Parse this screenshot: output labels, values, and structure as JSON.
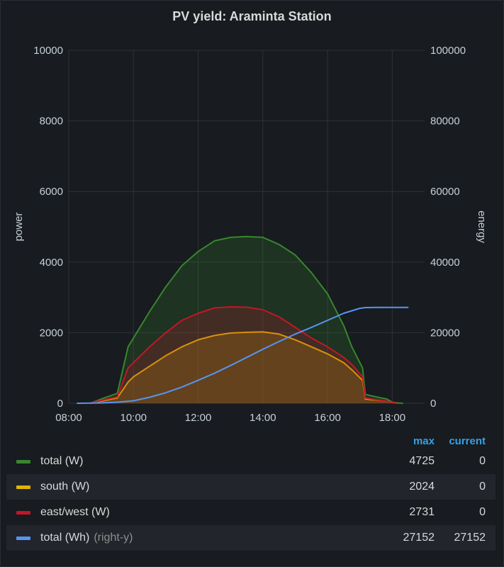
{
  "panel": {
    "title": "PV yield: Araminta Station"
  },
  "chart_data": {
    "type": "area",
    "title": "PV yield: Araminta Station",
    "x_ticks": [
      "08:00",
      "10:00",
      "12:00",
      "14:00",
      "16:00",
      "18:00"
    ],
    "xlim": [
      "08:00",
      "19:00"
    ],
    "y_left": {
      "label": "power",
      "ylim": [
        0,
        10000
      ],
      "ticks": [
        "0",
        "2000",
        "4000",
        "6000",
        "8000",
        "10000"
      ]
    },
    "y_right": {
      "label": "energy",
      "ylim": [
        0,
        100000
      ],
      "ticks": [
        "0",
        "20000",
        "40000",
        "60000",
        "80000",
        "100000"
      ]
    },
    "grid": true,
    "series": [
      {
        "name": "total (W)",
        "color": "#37872d",
        "axis": "left",
        "style": "area",
        "points": [
          [
            "08:40",
            0
          ],
          [
            "09:00",
            120
          ],
          [
            "09:30",
            280
          ],
          [
            "09:50",
            1600
          ],
          [
            "10:00",
            1850
          ],
          [
            "10:30",
            2600
          ],
          [
            "11:00",
            3300
          ],
          [
            "11:30",
            3900
          ],
          [
            "12:00",
            4300
          ],
          [
            "12:30",
            4600
          ],
          [
            "13:00",
            4700
          ],
          [
            "13:30",
            4725
          ],
          [
            "14:00",
            4700
          ],
          [
            "14:30",
            4500
          ],
          [
            "15:00",
            4200
          ],
          [
            "15:30",
            3700
          ],
          [
            "16:00",
            3100
          ],
          [
            "16:30",
            2200
          ],
          [
            "16:45",
            1600
          ],
          [
            "17:05",
            1000
          ],
          [
            "17:10",
            250
          ],
          [
            "17:30",
            180
          ],
          [
            "17:50",
            120
          ],
          [
            "18:00",
            30
          ],
          [
            "18:10",
            10
          ],
          [
            "18:20",
            0
          ]
        ]
      },
      {
        "name": "south (W)",
        "color": "#e0b400",
        "axis": "left",
        "style": "area",
        "points": [
          [
            "08:40",
            0
          ],
          [
            "09:00",
            60
          ],
          [
            "09:30",
            150
          ],
          [
            "09:50",
            600
          ],
          [
            "10:00",
            750
          ],
          [
            "10:30",
            1050
          ],
          [
            "11:00",
            1350
          ],
          [
            "11:30",
            1600
          ],
          [
            "12:00",
            1800
          ],
          [
            "12:30",
            1920
          ],
          [
            "13:00",
            1990
          ],
          [
            "13:30",
            2010
          ],
          [
            "14:00",
            2024
          ],
          [
            "14:30",
            1960
          ],
          [
            "15:00",
            1800
          ],
          [
            "15:30",
            1600
          ],
          [
            "16:00",
            1400
          ],
          [
            "16:30",
            1150
          ],
          [
            "16:45",
            950
          ],
          [
            "17:05",
            650
          ],
          [
            "17:10",
            120
          ],
          [
            "17:30",
            90
          ],
          [
            "17:50",
            60
          ],
          [
            "18:00",
            20
          ],
          [
            "18:10",
            0
          ]
        ]
      },
      {
        "name": "east/west (W)",
        "color": "#c4162a",
        "axis": "left",
        "style": "area",
        "points": [
          [
            "08:40",
            0
          ],
          [
            "09:00",
            80
          ],
          [
            "09:30",
            180
          ],
          [
            "09:50",
            1000
          ],
          [
            "10:00",
            1150
          ],
          [
            "10:30",
            1600
          ],
          [
            "11:00",
            2000
          ],
          [
            "11:30",
            2350
          ],
          [
            "12:00",
            2550
          ],
          [
            "12:30",
            2700
          ],
          [
            "13:00",
            2731
          ],
          [
            "13:30",
            2720
          ],
          [
            "14:00",
            2650
          ],
          [
            "14:30",
            2450
          ],
          [
            "15:00",
            2150
          ],
          [
            "15:30",
            1850
          ],
          [
            "16:00",
            1600
          ],
          [
            "16:30",
            1300
          ],
          [
            "16:45",
            1100
          ],
          [
            "17:05",
            750
          ],
          [
            "17:10",
            150
          ],
          [
            "17:30",
            100
          ],
          [
            "17:50",
            60
          ],
          [
            "18:00",
            20
          ],
          [
            "18:10",
            0
          ]
        ]
      },
      {
        "name": "total (Wh)",
        "color": "#5794f2",
        "axis": "right",
        "style": "line",
        "points": [
          [
            "08:15",
            0
          ],
          [
            "09:00",
            100
          ],
          [
            "09:30",
            300
          ],
          [
            "10:00",
            700
          ],
          [
            "10:30",
            1700
          ],
          [
            "11:00",
            3000
          ],
          [
            "11:30",
            4600
          ],
          [
            "12:00",
            6500
          ],
          [
            "12:30",
            8500
          ],
          [
            "13:00",
            10700
          ],
          [
            "13:30",
            13000
          ],
          [
            "14:00",
            15300
          ],
          [
            "14:30",
            17500
          ],
          [
            "15:00",
            19600
          ],
          [
            "15:30",
            21500
          ],
          [
            "16:00",
            23500
          ],
          [
            "16:30",
            25500
          ],
          [
            "17:00",
            26900
          ],
          [
            "17:10",
            27100
          ],
          [
            "17:30",
            27152
          ],
          [
            "18:30",
            27152
          ]
        ]
      }
    ]
  },
  "legend": {
    "headers": {
      "max": "max",
      "current": "current"
    },
    "rows": [
      {
        "name": "total (W)",
        "sub": "",
        "color": "#37872d",
        "max": "4725",
        "current": "0"
      },
      {
        "name": "south (W)",
        "sub": "",
        "color": "#e0b400",
        "max": "2024",
        "current": "0"
      },
      {
        "name": "east/west (W)",
        "sub": "",
        "color": "#c4162a",
        "max": "2731",
        "current": "0"
      },
      {
        "name": "total (Wh)",
        "sub": "(right-y)",
        "color": "#5794f2",
        "max": "27152",
        "current": "27152"
      }
    ]
  }
}
